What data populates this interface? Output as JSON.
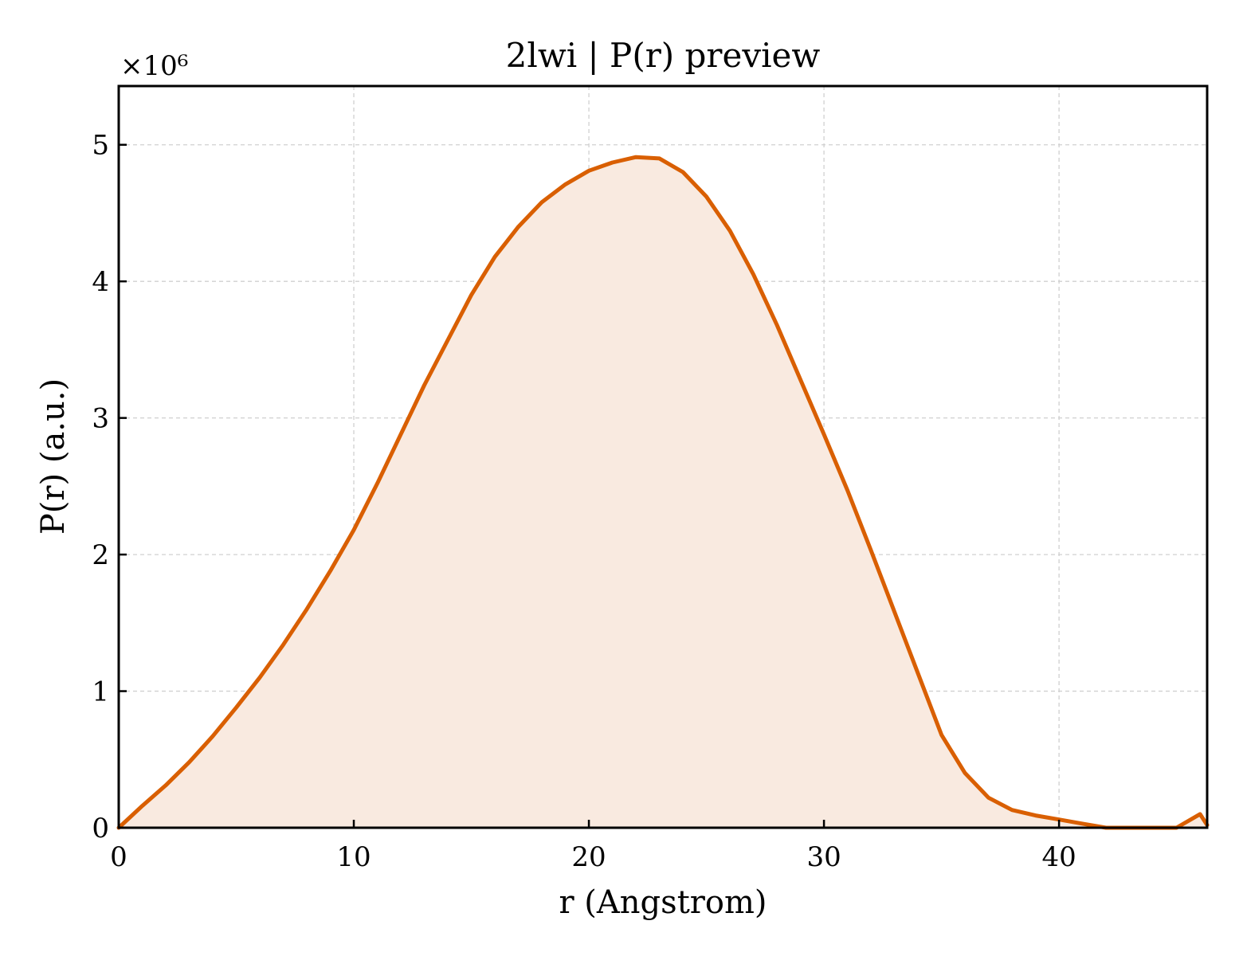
{
  "chart_data": {
    "type": "area",
    "title": "2lwi | P(r) preview",
    "xlabel": "r (Angstrom)",
    "ylabel": "P(r) (a.u.)",
    "y_multiplier_text": "×10⁶",
    "xlim": [
      0,
      46.3
    ],
    "ylim": [
      0,
      5.43
    ],
    "x_ticks": [
      0,
      10,
      20,
      30,
      40
    ],
    "x_tick_labels": [
      "0",
      "10",
      "20",
      "30",
      "40"
    ],
    "y_ticks": [
      0,
      1,
      2,
      3,
      4,
      5
    ],
    "y_tick_labels": [
      "0",
      "1",
      "2",
      "3",
      "4",
      "5"
    ],
    "grid": true,
    "line_color": "#d95f02",
    "fill_color": "#f9eae0",
    "series": [
      {
        "x": [
          0,
          1,
          2,
          3,
          4,
          5,
          6,
          7,
          8,
          9,
          10,
          11,
          12,
          13,
          14,
          15,
          16,
          17,
          18,
          19,
          20,
          21,
          22,
          23,
          24,
          25,
          26,
          27,
          28,
          29,
          30,
          31,
          32,
          33,
          34,
          35,
          36,
          37,
          38,
          39,
          40,
          41,
          42,
          43,
          44,
          45,
          46,
          46.3
        ],
        "y": [
          0,
          0.16,
          0.31,
          0.48,
          0.67,
          0.88,
          1.1,
          1.34,
          1.6,
          1.88,
          2.18,
          2.52,
          2.88,
          3.24,
          3.57,
          3.9,
          4.18,
          4.4,
          4.58,
          4.71,
          4.81,
          4.87,
          4.91,
          4.9,
          4.8,
          4.62,
          4.37,
          4.05,
          3.68,
          3.28,
          2.88,
          2.47,
          2.03,
          1.58,
          1.13,
          0.68,
          0.4,
          0.22,
          0.13,
          0.09,
          0.06,
          0.03,
          0.0,
          0.0,
          0.0,
          0.0,
          0.1,
          0.02
        ]
      }
    ]
  }
}
